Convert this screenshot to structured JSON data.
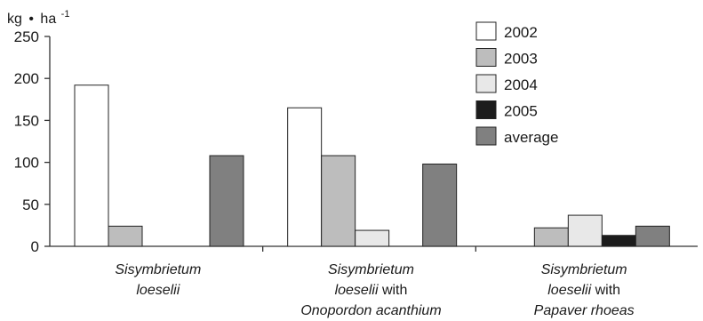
{
  "chart_data": {
    "type": "bar",
    "ylabel_parts": {
      "base": "kg",
      "dot": "•",
      "unit": "ha",
      "exp": "-1"
    },
    "ylim": [
      0,
      250
    ],
    "yticks": [
      "0",
      "50",
      "100",
      "150",
      "200",
      "250"
    ],
    "grid": false,
    "legend_position": "top-right",
    "categories": [
      {
        "lines": [
          [
            {
              "text": "Sisymbrietum",
              "italic": true
            }
          ],
          [
            {
              "text": "loeselii",
              "italic": true
            }
          ]
        ]
      },
      {
        "lines": [
          [
            {
              "text": "Sisymbrietum",
              "italic": true
            }
          ],
          [
            {
              "text": "loeselii",
              "italic": true
            },
            {
              "text": " with",
              "italic": false
            }
          ],
          [
            {
              "text": "Onopordon acanthium",
              "italic": true
            }
          ]
        ]
      },
      {
        "lines": [
          [
            {
              "text": "Sisymbrietum",
              "italic": true
            }
          ],
          [
            {
              "text": "loeselii",
              "italic": true
            },
            {
              "text": " with",
              "italic": false
            }
          ],
          [
            {
              "text": "Papaver rhoeas",
              "italic": true
            }
          ]
        ]
      }
    ],
    "series": [
      {
        "name": "2002",
        "color": "#ffffff",
        "values": [
          192,
          165,
          null
        ]
      },
      {
        "name": "2003",
        "color": "#bdbdbd",
        "values": [
          24,
          108,
          22
        ]
      },
      {
        "name": "2004",
        "color": "#e8e8e8",
        "values": [
          null,
          19,
          37
        ]
      },
      {
        "name": "2005",
        "color": "#1c1c1c",
        "values": [
          null,
          null,
          13
        ]
      },
      {
        "name": "average",
        "color": "#808080",
        "values": [
          108,
          98,
          24
        ]
      }
    ]
  }
}
